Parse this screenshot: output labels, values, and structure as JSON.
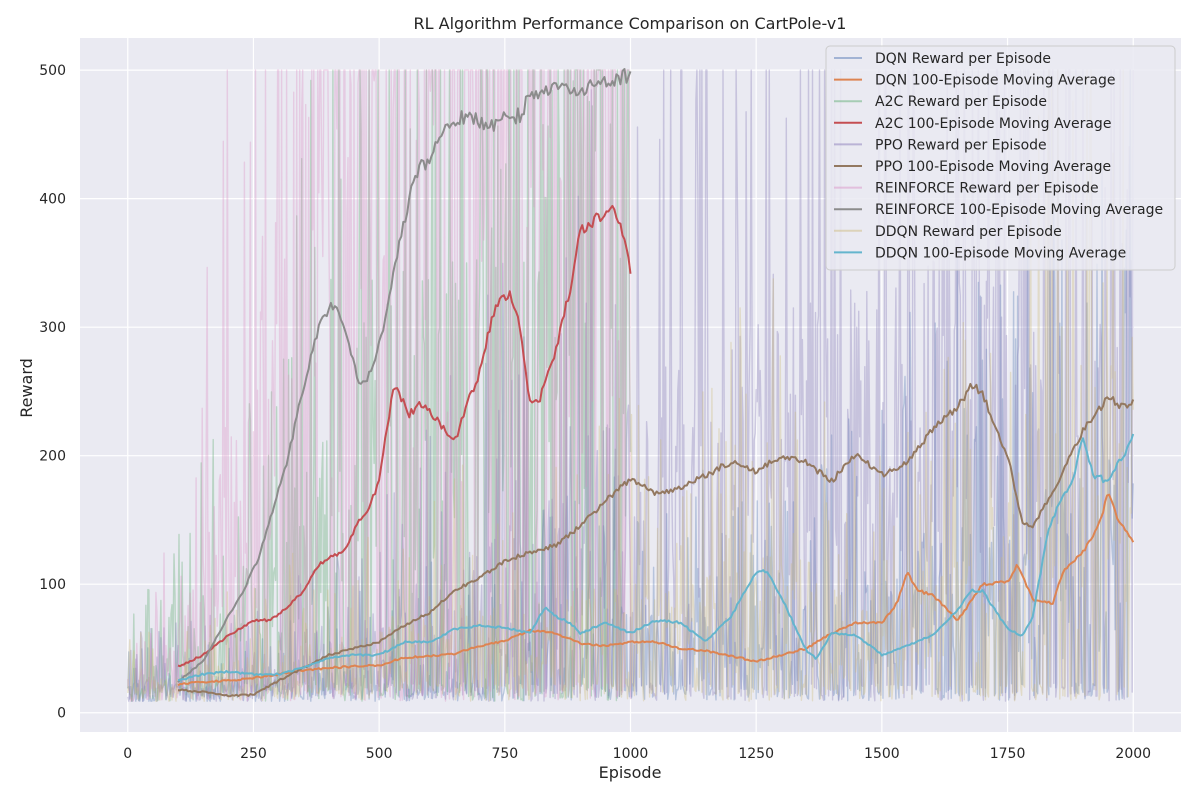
{
  "chart_data": {
    "type": "line",
    "title": "RL Algorithm Performance Comparison on CartPole-v1",
    "xlabel": "Episode",
    "ylabel": "Reward",
    "xlim": [
      -95,
      2095
    ],
    "ylim": [
      -15,
      525
    ],
    "xticks": [
      0,
      250,
      500,
      750,
      1000,
      1250,
      1500,
      1750,
      2000
    ],
    "yticks": [
      0,
      100,
      200,
      300,
      400,
      500
    ],
    "grid": true,
    "legend_position": "top-right",
    "series": [
      {
        "name": "DQN Reward per Episode",
        "kind": "raw",
        "color": "#4c72b0",
        "x": [
          0,
          100,
          200,
          300,
          400,
          500,
          600,
          700,
          800,
          900,
          1000,
          1100,
          1200,
          1300,
          1400,
          1500,
          1600,
          1700,
          1800,
          1900,
          2000
        ],
        "y": [
          12,
          14,
          16,
          18,
          22,
          25,
          30,
          35,
          40,
          45,
          48,
          50,
          45,
          42,
          60,
          70,
          85,
          95,
          100,
          120,
          140
        ]
      },
      {
        "name": "DQN 100-Episode Moving Average",
        "kind": "avg",
        "color": "#dd8452",
        "x": [
          100,
          150,
          200,
          250,
          300,
          350,
          400,
          450,
          500,
          550,
          600,
          650,
          700,
          750,
          800,
          850,
          900,
          950,
          1000,
          1050,
          1100,
          1150,
          1200,
          1250,
          1300,
          1350,
          1400,
          1450,
          1500,
          1530,
          1550,
          1570,
          1600,
          1650,
          1680,
          1700,
          1750,
          1770,
          1800,
          1840,
          1860,
          1900,
          1930,
          1950,
          1970,
          2000
        ],
        "y": [
          22,
          24,
          25,
          27,
          30,
          33,
          35,
          36,
          37,
          43,
          44,
          46,
          52,
          56,
          64,
          62,
          54,
          52,
          55,
          55,
          50,
          48,
          44,
          40,
          45,
          50,
          62,
          70,
          70,
          85,
          110,
          95,
          92,
          72,
          88,
          100,
          102,
          115,
          88,
          85,
          110,
          125,
          145,
          170,
          150,
          133
        ]
      },
      {
        "name": "A2C Reward per Episode",
        "kind": "raw",
        "color": "#55a868",
        "x": [
          0,
          50,
          100,
          150,
          200,
          250,
          300,
          350,
          400,
          450,
          500,
          550,
          600,
          650,
          700,
          750,
          800,
          850,
          900,
          950,
          1000
        ],
        "y": [
          20,
          25,
          35,
          50,
          60,
          75,
          100,
          120,
          150,
          180,
          220,
          240,
          230,
          215,
          280,
          320,
          250,
          300,
          370,
          390,
          350
        ]
      },
      {
        "name": "A2C 100-Episode Moving Average",
        "kind": "avg",
        "color": "#c44e52",
        "x": [
          100,
          150,
          200,
          250,
          280,
          300,
          350,
          380,
          400,
          430,
          460,
          480,
          500,
          510,
          530,
          560,
          580,
          600,
          630,
          650,
          670,
          700,
          720,
          740,
          760,
          780,
          800,
          820,
          850,
          880,
          900,
          920,
          950,
          960,
          975,
          985,
          1000
        ],
        "y": [
          36,
          45,
          60,
          72,
          72,
          76,
          95,
          115,
          120,
          125,
          150,
          160,
          180,
          210,
          255,
          232,
          240,
          235,
          220,
          210,
          235,
          265,
          300,
          325,
          325,
          300,
          242,
          245,
          280,
          330,
          375,
          380,
          390,
          395,
          385,
          370,
          345
        ]
      },
      {
        "name": "PPO Reward per Episode",
        "kind": "raw",
        "color": "#8172b3",
        "x": [
          0,
          100,
          200,
          300,
          400,
          500,
          600,
          700,
          800,
          900,
          1000,
          1100,
          1200,
          1300,
          1400,
          1500,
          1600,
          1700,
          1800,
          1900,
          2000
        ],
        "y": [
          15,
          18,
          20,
          25,
          35,
          45,
          60,
          80,
          100,
          120,
          150,
          170,
          180,
          190,
          200,
          210,
          220,
          230,
          170,
          200,
          230
        ]
      },
      {
        "name": "PPO 100-Episode Moving Average",
        "kind": "avg",
        "color": "#937860",
        "x": [
          100,
          150,
          200,
          250,
          300,
          350,
          400,
          450,
          500,
          550,
          600,
          650,
          700,
          750,
          800,
          850,
          900,
          950,
          1000,
          1050,
          1100,
          1150,
          1200,
          1250,
          1300,
          1350,
          1400,
          1450,
          1500,
          1550,
          1600,
          1650,
          1680,
          1700,
          1750,
          1780,
          1800,
          1850,
          1900,
          1950,
          1980,
          2000
        ],
        "y": [
          18,
          16,
          13,
          14,
          25,
          35,
          45,
          50,
          55,
          68,
          78,
          95,
          105,
          118,
          125,
          130,
          145,
          165,
          182,
          170,
          175,
          185,
          195,
          188,
          200,
          195,
          180,
          202,
          185,
          195,
          220,
          238,
          255,
          248,
          200,
          148,
          145,
          180,
          220,
          245,
          238,
          243
        ]
      },
      {
        "name": "REINFORCE Reward per Episode",
        "kind": "raw",
        "color": "#da8bc3",
        "x": [
          0,
          50,
          100,
          150,
          200,
          250,
          300,
          350,
          400,
          450,
          500,
          550,
          600,
          650,
          700,
          750,
          800,
          850,
          900,
          950,
          1000
        ],
        "y": [
          15,
          25,
          40,
          80,
          140,
          200,
          280,
          350,
          380,
          400,
          420,
          450,
          470,
          480,
          470,
          480,
          490,
          495,
          495,
          500,
          500
        ]
      },
      {
        "name": "REINFORCE 100-Episode Moving Average",
        "kind": "avg",
        "color": "#8c8c8c",
        "x": [
          100,
          150,
          200,
          230,
          260,
          290,
          320,
          350,
          380,
          400,
          410,
          420,
          440,
          460,
          470,
          490,
          510,
          530,
          560,
          580,
          600,
          620,
          650,
          680,
          700,
          720,
          750,
          780,
          800,
          850,
          900,
          950,
          980,
          1000
        ],
        "y": [
          24,
          40,
          75,
          95,
          120,
          160,
          200,
          255,
          300,
          315,
          315,
          310,
          285,
          255,
          255,
          275,
          300,
          345,
          400,
          425,
          430,
          445,
          462,
          465,
          458,
          456,
          462,
          465,
          480,
          488,
          485,
          490,
          495,
          495
        ]
      },
      {
        "name": "DDQN Reward per Episode",
        "kind": "raw",
        "color": "#ccb974",
        "x": [
          0,
          100,
          200,
          300,
          400,
          500,
          600,
          700,
          800,
          900,
          1000,
          1100,
          1200,
          1300,
          1400,
          1500,
          1600,
          1700,
          1800,
          1900,
          2000
        ],
        "y": [
          15,
          20,
          25,
          30,
          35,
          40,
          45,
          50,
          55,
          60,
          65,
          55,
          80,
          90,
          60,
          50,
          70,
          80,
          130,
          180,
          200
        ]
      },
      {
        "name": "DDQN 100-Episode Moving Average",
        "kind": "avg",
        "color": "#64b5cd",
        "x": [
          100,
          150,
          200,
          250,
          300,
          350,
          400,
          450,
          500,
          550,
          600,
          650,
          700,
          750,
          800,
          830,
          850,
          880,
          900,
          950,
          1000,
          1050,
          1100,
          1150,
          1200,
          1250,
          1270,
          1300,
          1350,
          1370,
          1400,
          1450,
          1500,
          1550,
          1600,
          1650,
          1680,
          1700,
          1750,
          1780,
          1800,
          1830,
          1860,
          1880,
          1900,
          1920,
          1950,
          1980,
          2000
        ],
        "y": [
          25,
          30,
          32,
          30,
          30,
          35,
          43,
          45,
          45,
          55,
          55,
          65,
          68,
          66,
          62,
          82,
          75,
          70,
          62,
          70,
          62,
          72,
          70,
          55,
          75,
          110,
          110,
          90,
          48,
          42,
          62,
          60,
          45,
          52,
          60,
          80,
          95,
          95,
          65,
          60,
          75,
          140,
          170,
          180,
          215,
          185,
          180,
          200,
          215
        ]
      }
    ]
  }
}
